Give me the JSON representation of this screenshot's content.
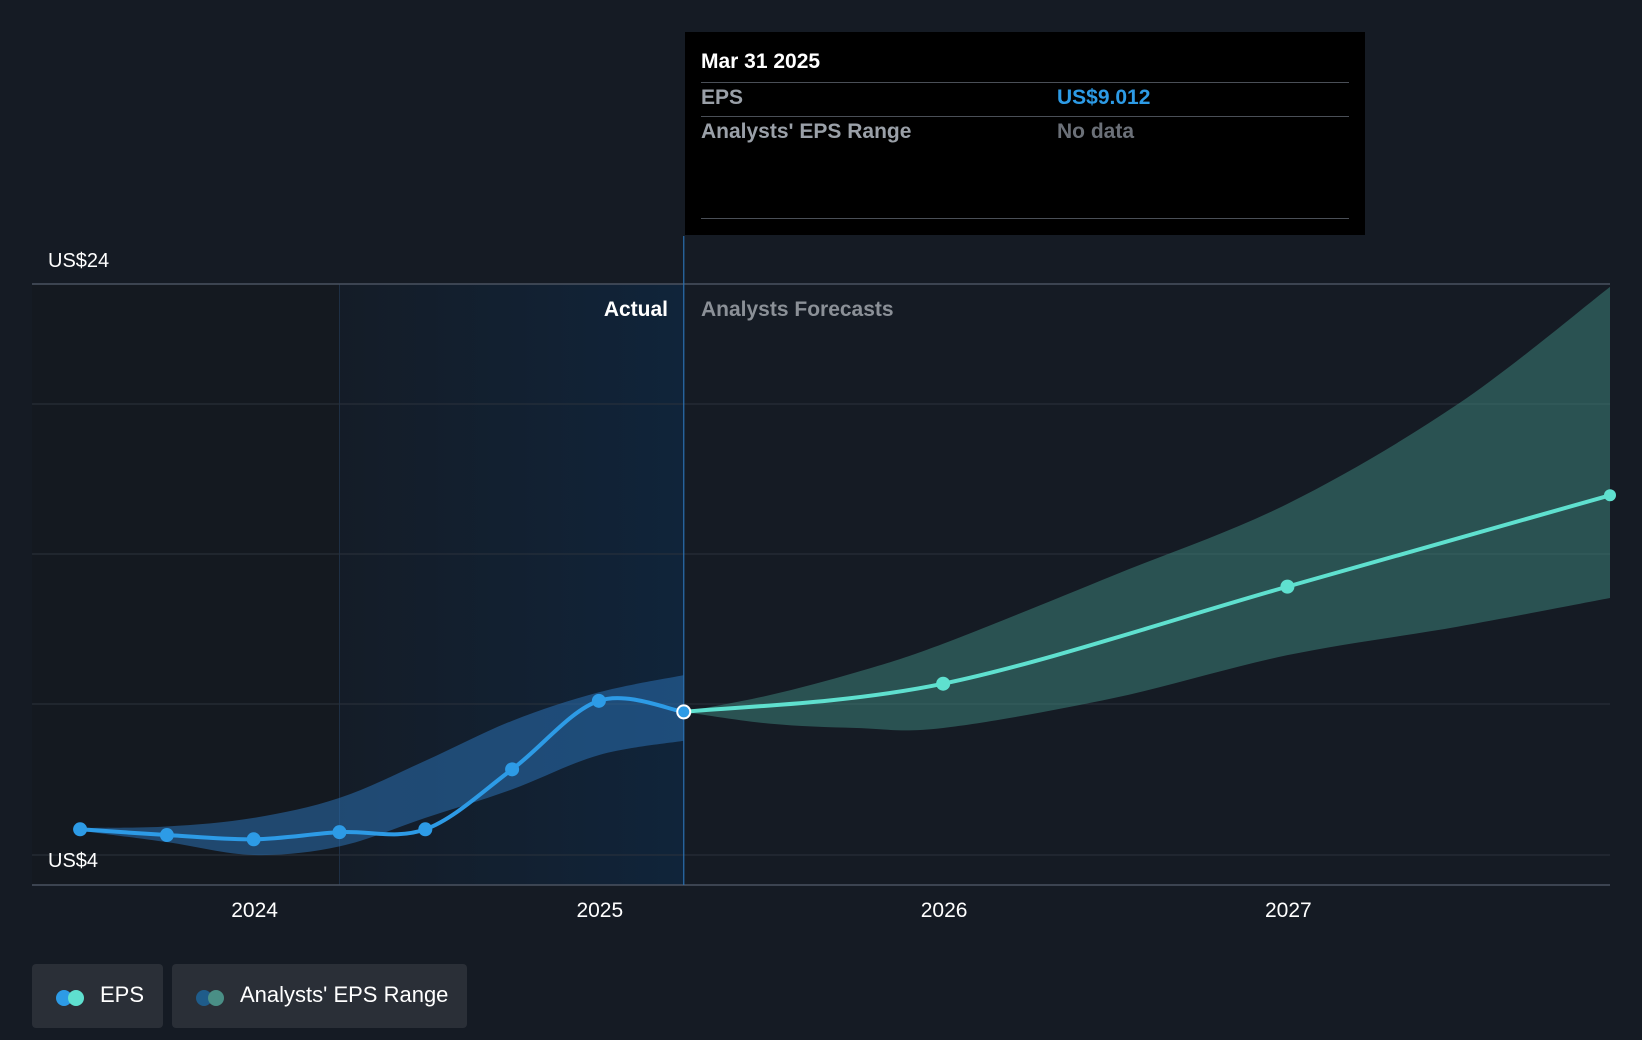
{
  "tooltip": {
    "date": "Mar 31 2025",
    "rows": [
      {
        "label": "EPS",
        "value": "US$9.012"
      },
      {
        "label": "Analysts' EPS Range",
        "value": "No data"
      }
    ]
  },
  "legend": [
    {
      "label": "EPS",
      "colors": [
        "#2d9be6",
        "#5fe0cf"
      ]
    },
    {
      "label": "Analysts' EPS Range",
      "colors": [
        "#1f5c8a",
        "#4a8f86"
      ]
    }
  ],
  "colors": {
    "actual_line": "#2d9be6",
    "forecast_line": "#5fe0cf",
    "actual_band": "#2a6fb0",
    "forecast_band": "#3f8a80",
    "actual_region": "#10243a",
    "background": "#151b24"
  },
  "chart_data": {
    "type": "line",
    "y_axis_labels": [
      "US$24",
      "US$4"
    ],
    "ylim": [
      4,
      24
    ],
    "x_tick_labels": [
      "2024",
      "2025",
      "2026",
      "2027"
    ],
    "xlim": [
      "2023-05-10",
      "2027-12-08"
    ],
    "section_labels": {
      "actual": "Actual",
      "forecast": "Analysts Forecasts"
    },
    "divider_date": "2025-03-31",
    "actual_region_start": "2024-03-31",
    "grid": true,
    "series": [
      {
        "name": "EPS",
        "segment": "actual",
        "points": [
          {
            "x": "2023-06-30",
            "y": 4.9
          },
          {
            "x": "2023-09-30",
            "y": 4.7
          },
          {
            "x": "2023-12-31",
            "y": 4.55
          },
          {
            "x": "2024-03-31",
            "y": 4.8
          },
          {
            "x": "2024-06-30",
            "y": 4.9
          },
          {
            "x": "2024-09-30",
            "y": 7.0
          },
          {
            "x": "2024-12-31",
            "y": 9.4
          },
          {
            "x": "2025-03-31",
            "y": 9.012
          }
        ]
      },
      {
        "name": "EPS",
        "segment": "forecast",
        "points": [
          {
            "x": "2025-03-31",
            "y": 9.012
          },
          {
            "x": "2025-12-31",
            "y": 10.0
          },
          {
            "x": "2026-12-31",
            "y": 13.4
          },
          {
            "x": "2027-12-08",
            "y": 16.6
          }
        ]
      }
    ],
    "bands": [
      {
        "name": "Analysts' EPS Range",
        "segment": "actual",
        "points": [
          {
            "x": "2023-06-30",
            "lo": 4.85,
            "hi": 4.95
          },
          {
            "x": "2023-09-30",
            "lo": 4.45,
            "hi": 5.0
          },
          {
            "x": "2023-12-31",
            "lo": 4.0,
            "hi": 5.3
          },
          {
            "x": "2024-03-31",
            "lo": 4.3,
            "hi": 6.0
          },
          {
            "x": "2024-06-30",
            "lo": 5.3,
            "hi": 7.3
          },
          {
            "x": "2024-09-30",
            "lo": 6.3,
            "hi": 8.7
          },
          {
            "x": "2024-12-31",
            "lo": 7.5,
            "hi": 9.7
          },
          {
            "x": "2025-03-31",
            "lo": 8.0,
            "hi": 10.3
          }
        ]
      },
      {
        "name": "Analysts' EPS Range",
        "segment": "forecast",
        "points": [
          {
            "x": "2025-03-31",
            "lo": 9.012,
            "hi": 9.012
          },
          {
            "x": "2025-06-30",
            "lo": 8.6,
            "hi": 9.6
          },
          {
            "x": "2025-09-30",
            "lo": 8.45,
            "hi": 10.4
          },
          {
            "x": "2025-12-31",
            "lo": 8.45,
            "hi": 11.4
          },
          {
            "x": "2026-06-30",
            "lo": 9.5,
            "hi": 13.8
          },
          {
            "x": "2026-12-31",
            "lo": 11.0,
            "hi": 16.3
          },
          {
            "x": "2027-06-30",
            "lo": 12.0,
            "hi": 19.8
          },
          {
            "x": "2027-12-08",
            "lo": 13.0,
            "hi": 23.9
          }
        ]
      }
    ]
  }
}
